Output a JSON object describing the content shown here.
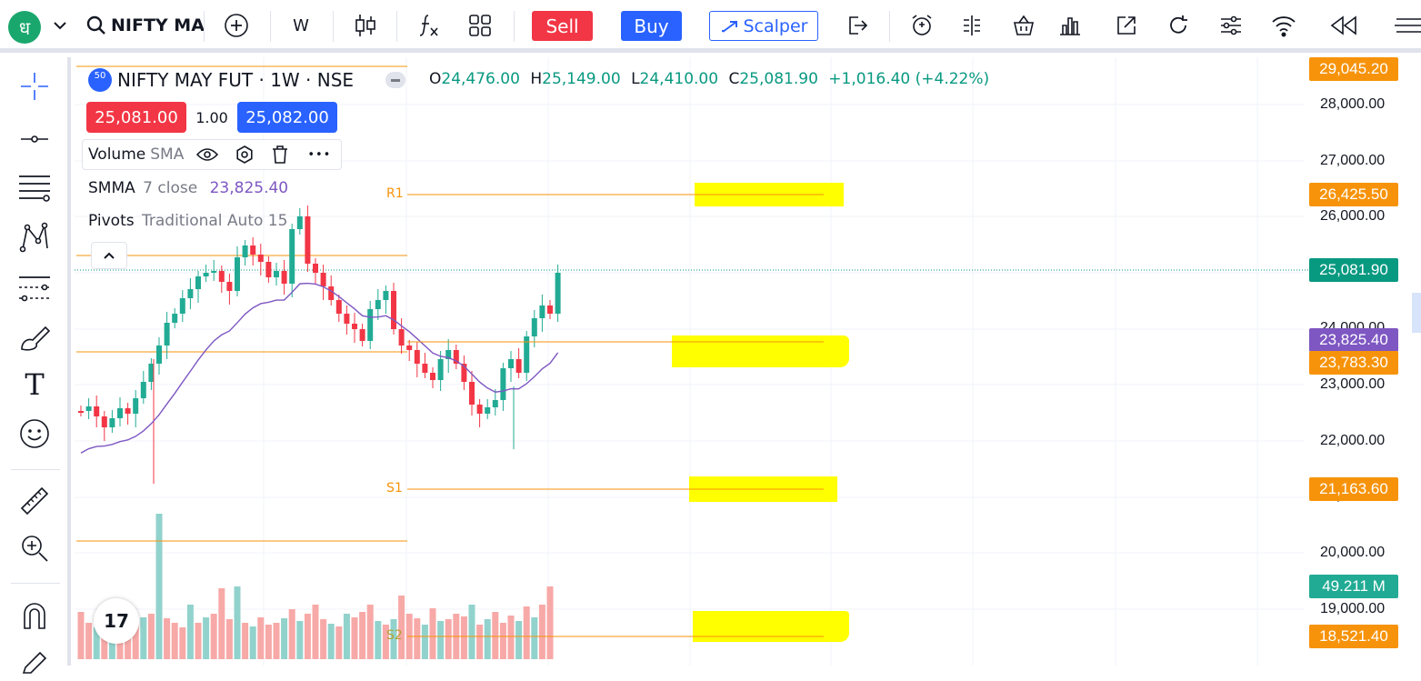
{
  "toolbar": {
    "logo_glyph": "ध",
    "symbol": "NIFTY MA",
    "interval": "W",
    "sell_label": "Sell",
    "buy_label": "Buy",
    "scalper_label": "Scalper",
    "icons": [
      "chevron-down-icon",
      "search-icon",
      "add-symbol-icon",
      "candles-icon",
      "indicators-icon",
      "templates-icon",
      "share-icon",
      "alert-icon",
      "replay-icon",
      "basket-icon",
      "chart-icon",
      "popout-icon",
      "refresh-icon",
      "settings-icon",
      "signal-icon",
      "rewind-icon",
      "menu-icon"
    ]
  },
  "left_toolbar": {
    "icons": [
      "crosshair-icon",
      "line-icon",
      "fib-icon",
      "pattern-icon",
      "forecast-icon",
      "brush-icon",
      "text-icon",
      "emoji-icon",
      "ruler-icon",
      "zoom-in-icon",
      "magnet-icon",
      "pencil-icon"
    ],
    "text_tool_glyph": "T"
  },
  "legend": {
    "exchange_badge": "50",
    "title": "NIFTY MAY FUT · 1W · NSE",
    "o_label": "O",
    "o_value": "24,476.00",
    "h_label": "H",
    "h_value": "25,149.00",
    "l_label": "L",
    "l_value": "24,410.00",
    "c_label": "C",
    "c_value": "25,081.90",
    "change": "+1,016.40 (+4.22%)",
    "bid": "25,081.00",
    "spread": "1.00",
    "ask": "25,082.00",
    "volume_name": "Volume",
    "volume_ma": "SMA",
    "smma_name": "SMMA",
    "smma_params": "7 close",
    "smma_value": "23,825.40",
    "pivots_name": "Pivots",
    "pivots_params": "Traditional Auto 15",
    "more_dots": "•••"
  },
  "pivot_labels": {
    "r1": "R1",
    "s1": "S1",
    "s2": "S2"
  },
  "price_axis": {
    "ticks": [
      "28,000.00",
      "27,000.00",
      "26,000.00",
      "24,000.00",
      "23,000.00",
      "22,000.00",
      "21,000.00",
      "20,000.00",
      "19,000.00"
    ],
    "tags": {
      "top": "29,045.20",
      "r1": "26,425.50",
      "last": "25,081.90",
      "smma": "23,825.40",
      "pivot_p": "23,783.30",
      "s1": "21,163.60",
      "volume": "49.211 M",
      "s2": "18,521.40"
    }
  },
  "watermark": "17",
  "colors": {
    "up": "#22ab94",
    "down": "#f23645",
    "pivot": "#f7930a",
    "smma": "#7e57c2",
    "highlight": "#ffff00"
  }
}
